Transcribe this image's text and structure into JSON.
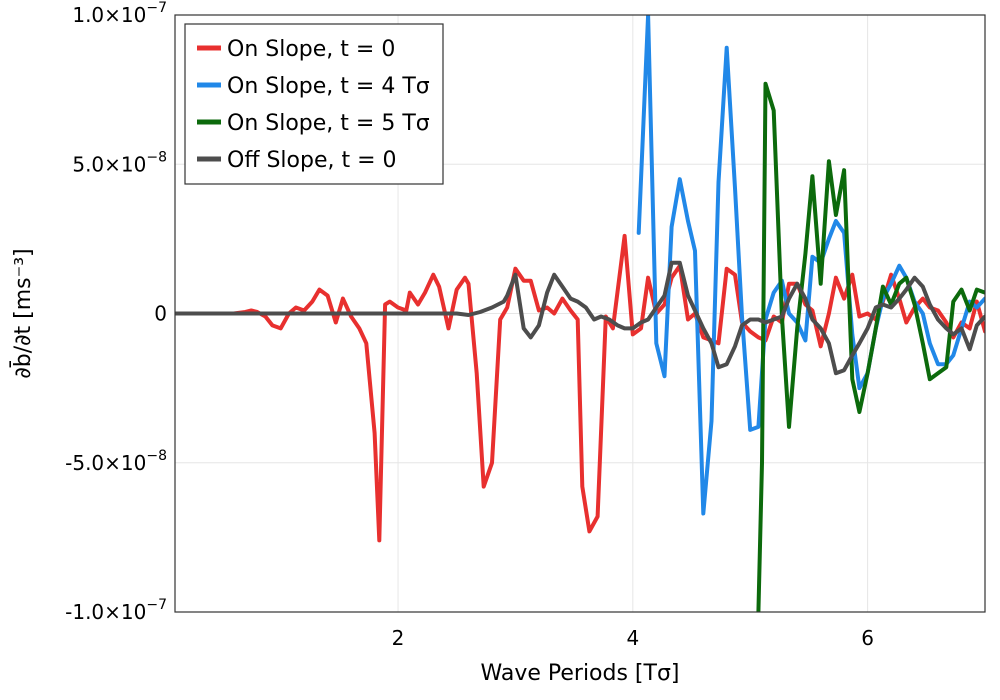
{
  "chart_data": {
    "type": "line",
    "xlabel": "Wave Periods [Tσ]",
    "ylabel": "∂b̄/∂t [ms⁻³]",
    "xlim": [
      0.1,
      7.0
    ],
    "ylim": [
      -1e-07,
      1e-07
    ],
    "grid": true,
    "legend_position": "top-left",
    "x_ticks": [
      {
        "value": 2,
        "label": "2"
      },
      {
        "value": 4,
        "label": "4"
      },
      {
        "value": 6,
        "label": "6"
      }
    ],
    "y_ticks": [
      {
        "value": 1e-07,
        "mantissa": "1.0×10",
        "exp": "−7"
      },
      {
        "value": 5e-08,
        "mantissa": "5.0×10",
        "exp": "−8"
      },
      {
        "value": 0,
        "mantissa": "0",
        "exp": ""
      },
      {
        "value": -5e-08,
        "mantissa": "-5.0×10",
        "exp": "−8"
      },
      {
        "value": -1e-07,
        "mantissa": "-1.0×10",
        "exp": "−7"
      }
    ],
    "series": [
      {
        "name": "On Slope, t = 0",
        "color": "#e8302f",
        "points": [
          [
            0.1,
            0
          ],
          [
            0.3,
            0
          ],
          [
            0.5,
            0
          ],
          [
            0.6,
            0
          ],
          [
            0.7,
            5e-10
          ],
          [
            0.75,
            1e-09
          ],
          [
            0.8,
            5e-10
          ],
          [
            0.87,
            -1e-09
          ],
          [
            0.93,
            -4e-09
          ],
          [
            1.0,
            -5e-09
          ],
          [
            1.07,
            0
          ],
          [
            1.13,
            2e-09
          ],
          [
            1.2,
            1e-09
          ],
          [
            1.27,
            4e-09
          ],
          [
            1.33,
            8e-09
          ],
          [
            1.4,
            6e-09
          ],
          [
            1.47,
            -3e-09
          ],
          [
            1.53,
            5e-09
          ],
          [
            1.6,
            -1e-09
          ],
          [
            1.67,
            -5e-09
          ],
          [
            1.73,
            -1e-08
          ],
          [
            1.8,
            -4e-08
          ],
          [
            1.84,
            -7.6e-08
          ],
          [
            1.89,
            3e-09
          ],
          [
            1.93,
            4e-09
          ],
          [
            2.0,
            2e-09
          ],
          [
            2.07,
            1e-09
          ],
          [
            2.1,
            7e-09
          ],
          [
            2.17,
            3e-09
          ],
          [
            2.23,
            7e-09
          ],
          [
            2.3,
            1.3e-08
          ],
          [
            2.35,
            9e-09
          ],
          [
            2.43,
            -5e-09
          ],
          [
            2.5,
            8e-09
          ],
          [
            2.57,
            1.2e-08
          ],
          [
            2.6,
            1e-08
          ],
          [
            2.67,
            -2e-08
          ],
          [
            2.73,
            -5.8e-08
          ],
          [
            2.8,
            -5e-08
          ],
          [
            2.87,
            -2e-09
          ],
          [
            2.93,
            2e-09
          ],
          [
            3.0,
            1.5e-08
          ],
          [
            3.07,
            1.1e-08
          ],
          [
            3.13,
            1.1e-08
          ],
          [
            3.2,
            1e-09
          ],
          [
            3.27,
            2e-09
          ],
          [
            3.33,
            0
          ],
          [
            3.4,
            5e-09
          ],
          [
            3.47,
            1e-09
          ],
          [
            3.53,
            -2e-09
          ],
          [
            3.57,
            -5.8e-08
          ],
          [
            3.63,
            -7.3e-08
          ],
          [
            3.7,
            -6.8e-08
          ],
          [
            3.77,
            -1e-09
          ],
          [
            3.83,
            -5e-09
          ],
          [
            3.93,
            2.6e-08
          ],
          [
            4.0,
            -7e-09
          ],
          [
            4.07,
            -5e-09
          ],
          [
            4.13,
            1.2e-08
          ],
          [
            4.2,
            0
          ],
          [
            4.27,
            3e-09
          ],
          [
            4.33,
            1.2e-08
          ],
          [
            4.4,
            1.6e-08
          ],
          [
            4.47,
            -2e-09
          ],
          [
            4.53,
            0
          ],
          [
            4.6,
            -8e-09
          ],
          [
            4.67,
            -9e-09
          ],
          [
            4.73,
            -1e-08
          ],
          [
            4.8,
            1.5e-08
          ],
          [
            4.87,
            1.3e-08
          ],
          [
            4.93,
            -3e-09
          ],
          [
            5.0,
            -6e-09
          ],
          [
            5.07,
            -8e-09
          ],
          [
            5.13,
            -9e-09
          ],
          [
            5.2,
            -1e-09
          ],
          [
            5.27,
            -3e-09
          ],
          [
            5.33,
            1e-08
          ],
          [
            5.4,
            1e-08
          ],
          [
            5.47,
            3e-09
          ],
          [
            5.53,
            1e-09
          ],
          [
            5.6,
            -1.1e-08
          ],
          [
            5.67,
            0
          ],
          [
            5.73,
            1.2e-08
          ],
          [
            5.8,
            5e-09
          ],
          [
            5.87,
            1.3e-08
          ],
          [
            5.93,
            -1e-09
          ],
          [
            6.0,
            0
          ],
          [
            6.07,
            -2e-09
          ],
          [
            6.13,
            4e-09
          ],
          [
            6.2,
            1.3e-08
          ],
          [
            6.27,
            5e-09
          ],
          [
            6.33,
            -3e-09
          ],
          [
            6.4,
            2e-09
          ],
          [
            6.47,
            5e-09
          ],
          [
            6.53,
            2e-09
          ],
          [
            6.6,
            1e-09
          ],
          [
            6.67,
            -3e-09
          ],
          [
            6.73,
            -8e-09
          ],
          [
            6.8,
            -3e-09
          ],
          [
            6.87,
            -5e-09
          ],
          [
            6.93,
            4e-09
          ],
          [
            7.0,
            -6e-09
          ]
        ]
      },
      {
        "name": "On Slope, t = 4 Tσ",
        "color": "#2188e8",
        "points": [
          [
            4.05,
            2.7e-08
          ],
          [
            4.13,
            1e-07
          ],
          [
            4.2,
            -1e-08
          ],
          [
            4.27,
            -2.1e-08
          ],
          [
            4.33,
            2.9e-08
          ],
          [
            4.4,
            4.5e-08
          ],
          [
            4.47,
            3.1e-08
          ],
          [
            4.53,
            2.1e-08
          ],
          [
            4.6,
            -6.7e-08
          ],
          [
            4.67,
            -3.6e-08
          ],
          [
            4.73,
            4.4e-08
          ],
          [
            4.8,
            8.9e-08
          ],
          [
            4.87,
            4.2e-08
          ],
          [
            4.93,
            -1e-09
          ],
          [
            5.0,
            -3.9e-08
          ],
          [
            5.07,
            -3.8e-08
          ],
          [
            5.13,
            -2e-09
          ],
          [
            5.2,
            7e-09
          ],
          [
            5.27,
            1.1e-08
          ],
          [
            5.33,
            0
          ],
          [
            5.4,
            -3e-09
          ],
          [
            5.47,
            -9e-09
          ],
          [
            5.53,
            1.9e-08
          ],
          [
            5.6,
            1.7e-08
          ],
          [
            5.67,
            2.5e-08
          ],
          [
            5.73,
            3.1e-08
          ],
          [
            5.8,
            2.7e-08
          ],
          [
            5.87,
            -7e-09
          ],
          [
            5.93,
            -2.5e-08
          ],
          [
            6.0,
            -2e-08
          ],
          [
            6.07,
            -5e-09
          ],
          [
            6.13,
            5e-09
          ],
          [
            6.2,
            1e-08
          ],
          [
            6.27,
            1.6e-08
          ],
          [
            6.33,
            1.2e-08
          ],
          [
            6.4,
            4e-09
          ],
          [
            6.47,
            0
          ],
          [
            6.53,
            -1e-08
          ],
          [
            6.6,
            -1.7e-08
          ],
          [
            6.67,
            -1.7e-08
          ],
          [
            6.73,
            -1.4e-08
          ],
          [
            6.8,
            -5e-09
          ],
          [
            6.87,
            4e-09
          ],
          [
            6.93,
            2e-09
          ],
          [
            7.0,
            5e-09
          ]
        ]
      },
      {
        "name": "On Slope, t = 5 Tσ",
        "color": "#0c6a0c",
        "points": [
          [
            5.07,
            -1e-07
          ],
          [
            5.1,
            -5e-08
          ],
          [
            5.13,
            7.7e-08
          ],
          [
            5.2,
            6.8e-08
          ],
          [
            5.27,
            -1e-09
          ],
          [
            5.33,
            -3.8e-08
          ],
          [
            5.4,
            -5e-09
          ],
          [
            5.47,
            2e-08
          ],
          [
            5.53,
            4.6e-08
          ],
          [
            5.6,
            1e-08
          ],
          [
            5.67,
            5.1e-08
          ],
          [
            5.73,
            3.3e-08
          ],
          [
            5.8,
            4.8e-08
          ],
          [
            5.87,
            -2.2e-08
          ],
          [
            5.93,
            -3.3e-08
          ],
          [
            6.0,
            -2e-08
          ],
          [
            6.07,
            -5e-09
          ],
          [
            6.13,
            9e-09
          ],
          [
            6.2,
            3e-09
          ],
          [
            6.27,
            1e-08
          ],
          [
            6.33,
            1.2e-08
          ],
          [
            6.4,
            3e-09
          ],
          [
            6.47,
            -1e-08
          ],
          [
            6.53,
            -2.2e-08
          ],
          [
            6.6,
            -2e-08
          ],
          [
            6.67,
            -1.8e-08
          ],
          [
            6.73,
            4e-09
          ],
          [
            6.8,
            8e-09
          ],
          [
            6.87,
            1e-09
          ],
          [
            6.93,
            8e-09
          ],
          [
            7.0,
            7e-09
          ]
        ]
      },
      {
        "name": "Off Slope, t = 0",
        "color": "#4d4d4d",
        "points": [
          [
            0.1,
            0
          ],
          [
            0.5,
            0
          ],
          [
            1.0,
            0
          ],
          [
            1.5,
            0
          ],
          [
            2.0,
            0
          ],
          [
            2.5,
            0
          ],
          [
            2.6,
            -5e-10
          ],
          [
            2.7,
            5e-10
          ],
          [
            2.8,
            2e-09
          ],
          [
            2.9,
            4e-09
          ],
          [
            2.93,
            6e-09
          ],
          [
            3.0,
            1.3e-08
          ],
          [
            3.07,
            -5e-09
          ],
          [
            3.13,
            -8e-09
          ],
          [
            3.2,
            -4e-09
          ],
          [
            3.27,
            7e-09
          ],
          [
            3.33,
            1.3e-08
          ],
          [
            3.4,
            9e-09
          ],
          [
            3.47,
            5e-09
          ],
          [
            3.53,
            4e-09
          ],
          [
            3.6,
            2e-09
          ],
          [
            3.67,
            -2e-09
          ],
          [
            3.73,
            -1e-09
          ],
          [
            3.8,
            -2e-09
          ],
          [
            3.87,
            -4e-09
          ],
          [
            3.93,
            -5e-09
          ],
          [
            4.0,
            -5e-09
          ],
          [
            4.07,
            -3e-09
          ],
          [
            4.13,
            -2e-09
          ],
          [
            4.2,
            2e-09
          ],
          [
            4.27,
            6e-09
          ],
          [
            4.33,
            1.7e-08
          ],
          [
            4.4,
            1.7e-08
          ],
          [
            4.47,
            6e-09
          ],
          [
            4.53,
            1e-09
          ],
          [
            4.6,
            -5e-09
          ],
          [
            4.67,
            -1e-08
          ],
          [
            4.73,
            -1.8e-08
          ],
          [
            4.8,
            -1.7e-08
          ],
          [
            4.87,
            -1.1e-08
          ],
          [
            4.93,
            -4e-09
          ],
          [
            5.0,
            -2e-09
          ],
          [
            5.07,
            -2e-09
          ],
          [
            5.13,
            -3e-09
          ],
          [
            5.2,
            -2e-09
          ],
          [
            5.27,
            -1e-09
          ],
          [
            5.33,
            5e-09
          ],
          [
            5.4,
            1e-08
          ],
          [
            5.47,
            5e-09
          ],
          [
            5.53,
            -2e-09
          ],
          [
            5.6,
            -5e-09
          ],
          [
            5.67,
            -1e-08
          ],
          [
            5.73,
            -2e-08
          ],
          [
            5.8,
            -1.9e-08
          ],
          [
            5.87,
            -1.4e-08
          ],
          [
            5.93,
            -1e-08
          ],
          [
            6.0,
            -5e-09
          ],
          [
            6.07,
            2e-09
          ],
          [
            6.13,
            3e-09
          ],
          [
            6.2,
            2e-09
          ],
          [
            6.27,
            5e-09
          ],
          [
            6.33,
            8e-09
          ],
          [
            6.4,
            1.2e-08
          ],
          [
            6.47,
            9e-09
          ],
          [
            6.53,
            3e-09
          ],
          [
            6.6,
            -2e-09
          ],
          [
            6.67,
            -5e-09
          ],
          [
            6.73,
            -7e-09
          ],
          [
            6.8,
            -5e-09
          ],
          [
            6.87,
            -1.2e-08
          ],
          [
            6.93,
            -4e-09
          ],
          [
            7.0,
            -1e-09
          ]
        ]
      }
    ]
  }
}
